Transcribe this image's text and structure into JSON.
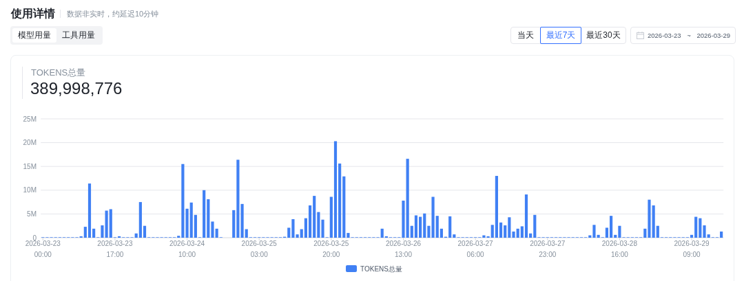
{
  "chart_data": {
    "type": "bar",
    "title": "使用详情",
    "subtitle": "数据非实时，约延迟10分钟",
    "annotations": [
      "模型用量",
      "工具用量",
      "当天",
      "最近7天",
      "最近30天",
      "2026-03-23 ~ 2026-03-29",
      "TOKENS总量",
      "389,998,776"
    ],
    "categories": [
      "2026-03-23\n00:00",
      null,
      null,
      null,
      null,
      null,
      null,
      null,
      null,
      null,
      null,
      null,
      null,
      null,
      null,
      null,
      null,
      "2026-03-23\n17:00",
      null,
      null,
      null,
      null,
      null,
      null,
      null,
      null,
      null,
      null,
      null,
      null,
      null,
      null,
      null,
      null,
      "2026-03-24\n10:00",
      null,
      null,
      null,
      null,
      null,
      null,
      null,
      null,
      null,
      null,
      null,
      null,
      null,
      null,
      null,
      null,
      "2026-03-25\n03:00",
      null,
      null,
      null,
      null,
      null,
      null,
      null,
      null,
      null,
      null,
      null,
      null,
      null,
      null,
      null,
      null,
      "2026-03-25\n20:00",
      null,
      null,
      null,
      null,
      null,
      null,
      null,
      null,
      null,
      null,
      null,
      null,
      null,
      null,
      null,
      null,
      "2026-03-26\n13:00",
      null,
      null,
      null,
      null,
      null,
      null,
      null,
      null,
      null,
      null,
      null,
      null,
      null,
      null,
      null,
      null,
      "2026-03-27\n06:00",
      null,
      null,
      null,
      null,
      null,
      null,
      null,
      null,
      null,
      null,
      null,
      null,
      null,
      null,
      null,
      null,
      "2026-03-27\n23:00",
      null,
      null,
      null,
      null,
      null,
      null,
      null,
      null,
      null,
      null,
      null,
      null,
      null,
      null,
      null,
      null,
      "2026-03-28\n16:00",
      null,
      null,
      null,
      null,
      null,
      null,
      null,
      null,
      null,
      null,
      null,
      null,
      null,
      null,
      null,
      null,
      "2026-03-29\n09:00",
      null,
      null,
      null,
      null,
      null,
      null,
      null
    ],
    "series": [
      {
        "name": "TOKENS总量",
        "color": "#4080f4",
        "values": [
          0.1,
          0.1,
          0.1,
          0.1,
          0.1,
          0.1,
          0.1,
          0.1,
          0.1,
          0.3,
          2.3,
          11.4,
          1.9,
          0.1,
          2.6,
          5.7,
          6.0,
          0.1,
          0.3,
          0.1,
          0.1,
          0.1,
          0.9,
          7.5,
          2.5,
          0.1,
          0.1,
          0.1,
          0.1,
          0.1,
          0.1,
          0.1,
          0.4,
          15.5,
          6.1,
          7.4,
          4.8,
          0.1,
          10.0,
          8.1,
          3.4,
          1.9,
          0.1,
          0,
          0,
          5.8,
          16.4,
          7.1,
          1.8,
          0.1,
          0.1,
          0.1,
          0.1,
          0.1,
          0.1,
          0.1,
          0.1,
          0.2,
          2.1,
          3.9,
          0.7,
          1.8,
          4.1,
          6.8,
          8.8,
          5.4,
          3.8,
          0.1,
          8.6,
          20.3,
          15.6,
          12.9,
          1.0,
          0.1,
          0.1,
          0.1,
          0.1,
          0.1,
          0.1,
          0.1,
          1.9,
          0.3,
          0.1,
          0.1,
          0.1,
          7.8,
          16.6,
          2.5,
          4.7,
          4.4,
          5.1,
          2.5,
          8.6,
          4.6,
          1.9,
          0.2,
          4.5,
          0.7,
          0.1,
          0.1,
          0.1,
          0.1,
          0.1,
          0.1,
          0.5,
          0.3,
          2.7,
          13.0,
          3.2,
          2.6,
          4.3,
          1.3,
          1.9,
          2.4,
          9.1,
          0.9,
          4.8,
          0.1,
          0.1,
          0.1,
          0.1,
          0.1,
          0.1,
          0.1,
          0.1,
          0.1,
          0.1,
          0.1,
          0.1,
          0.5,
          2.7,
          0.6,
          0.1,
          2.1,
          4.6,
          0.6,
          2.5,
          0.1,
          0.1,
          0.1,
          0.1,
          0.1,
          1.9,
          8.0,
          6.8,
          2.5,
          0.1,
          0.1,
          0.1,
          0.1,
          0.1,
          0.1,
          0.1,
          0.6,
          4.4,
          4.1,
          2.6,
          0.7,
          0.1,
          0.1,
          1.3
        ]
      }
    ],
    "ylim": [
      0,
      25
    ],
    "yticks": [
      0,
      {
        "value": 5,
        "label": "5M"
      },
      {
        "value": 10,
        "label": "10M"
      },
      {
        "value": 15,
        "label": "15M"
      },
      {
        "value": 20,
        "label": "20M"
      },
      {
        "value": 25,
        "label": "25M"
      }
    ],
    "grid": "y",
    "legend": "bottom"
  }
}
